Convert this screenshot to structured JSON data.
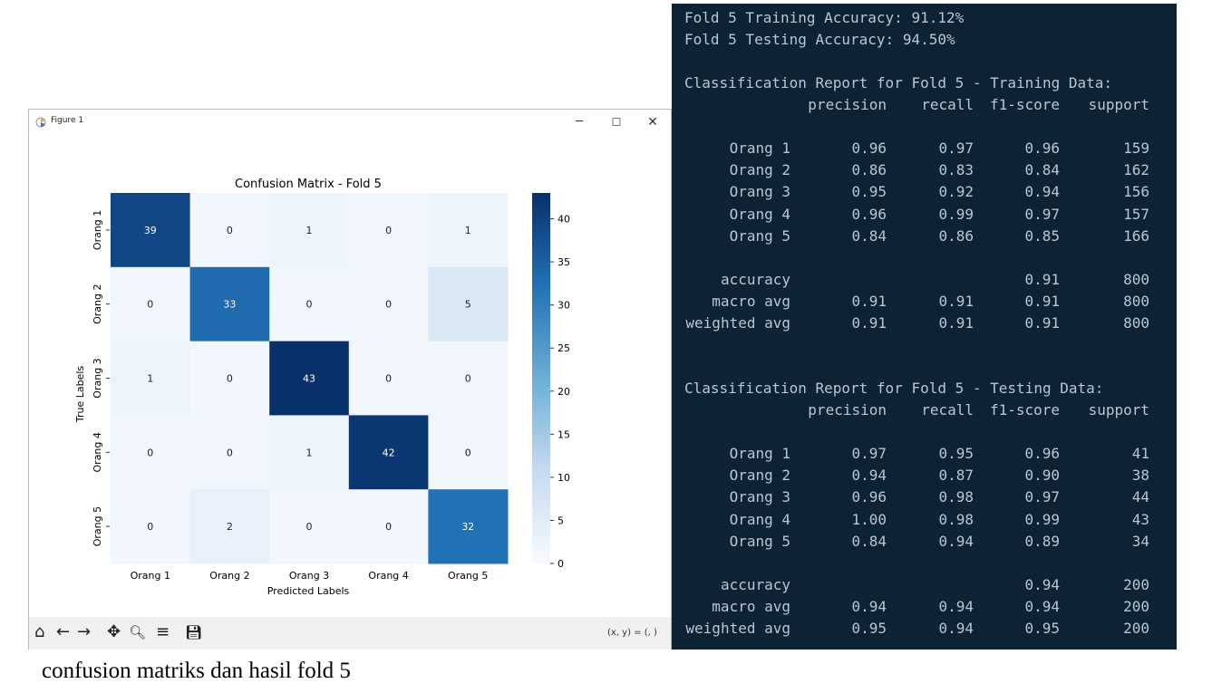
{
  "window": {
    "title": "Figure 1",
    "minimize": "─",
    "maximize": "☐",
    "close": "✕",
    "coords": "(x, y) = (, )"
  },
  "toolbar": {
    "home": "⌂",
    "back": "←",
    "forward": "→",
    "pan": "✥",
    "zoom": "🔍︎",
    "configure": "≡",
    "save": "💾︎"
  },
  "chart_data": {
    "type": "heatmap",
    "title": "Confusion Matrix - Fold 5",
    "xlabel": "Predicted Labels",
    "ylabel": "True Labels",
    "x_categories": [
      "Orang 1",
      "Orang 2",
      "Orang 3",
      "Orang 4",
      "Orang 5"
    ],
    "y_categories": [
      "Orang 1",
      "Orang 2",
      "Orang 3",
      "Orang 4",
      "Orang 5"
    ],
    "values": [
      [
        39,
        0,
        1,
        0,
        1
      ],
      [
        0,
        33,
        0,
        0,
        5
      ],
      [
        1,
        0,
        43,
        0,
        0
      ],
      [
        0,
        0,
        1,
        42,
        0
      ],
      [
        0,
        2,
        0,
        0,
        32
      ]
    ],
    "colormap": "Blues",
    "vmin": 0,
    "vmax": 43,
    "colorbar_ticks": [
      0,
      5,
      10,
      15,
      20,
      25,
      30,
      35,
      40
    ]
  },
  "terminal": {
    "line1": "Fold 5 Training Accuracy: 91.12%",
    "line2": "Fold 5 Testing Accuracy: 94.50%",
    "training": {
      "heading": "Classification Report for Fold 5 - Training Data:",
      "columns": [
        "precision",
        "recall",
        "f1-score",
        "support"
      ],
      "rows": [
        [
          "Orang 1",
          "0.96",
          "0.97",
          "0.96",
          "159"
        ],
        [
          "Orang 2",
          "0.86",
          "0.83",
          "0.84",
          "162"
        ],
        [
          "Orang 3",
          "0.95",
          "0.92",
          "0.94",
          "156"
        ],
        [
          "Orang 4",
          "0.96",
          "0.99",
          "0.97",
          "157"
        ],
        [
          "Orang 5",
          "0.84",
          "0.86",
          "0.85",
          "166"
        ]
      ],
      "summary": [
        [
          "accuracy",
          "",
          "",
          "0.91",
          "800"
        ],
        [
          "macro avg",
          "0.91",
          "0.91",
          "0.91",
          "800"
        ],
        [
          "weighted avg",
          "0.91",
          "0.91",
          "0.91",
          "800"
        ]
      ]
    },
    "testing": {
      "heading": "Classification Report for Fold 5 - Testing Data:",
      "columns": [
        "precision",
        "recall",
        "f1-score",
        "support"
      ],
      "rows": [
        [
          "Orang 1",
          "0.97",
          "0.95",
          "0.96",
          "41"
        ],
        [
          "Orang 2",
          "0.94",
          "0.87",
          "0.90",
          "38"
        ],
        [
          "Orang 3",
          "0.96",
          "0.98",
          "0.97",
          "44"
        ],
        [
          "Orang 4",
          "1.00",
          "0.98",
          "0.99",
          "43"
        ],
        [
          "Orang 5",
          "0.84",
          "0.94",
          "0.89",
          "34"
        ]
      ],
      "summary": [
        [
          "accuracy",
          "",
          "",
          "0.94",
          "200"
        ],
        [
          "macro avg",
          "0.94",
          "0.94",
          "0.94",
          "200"
        ],
        [
          "weighted avg",
          "0.95",
          "0.94",
          "0.95",
          "200"
        ]
      ]
    }
  },
  "caption": "confusion matriks dan hasil fold 5"
}
